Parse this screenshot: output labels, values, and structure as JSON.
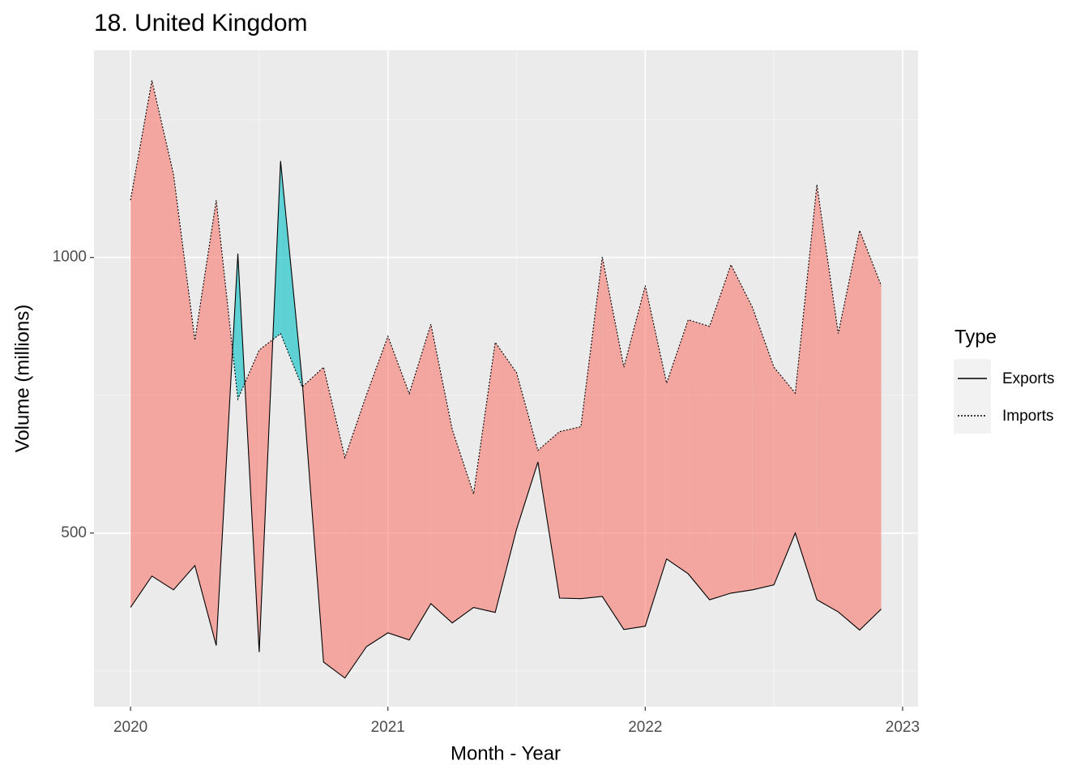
{
  "chart_data": {
    "type": "ribbon_line",
    "title": "18. United Kingdom",
    "x_label": "Month - Year",
    "y_label": "Volume (millions)",
    "legend_title": "Type",
    "legend_position": "right",
    "x": [
      2020.0,
      2020.083,
      2020.167,
      2020.25,
      2020.333,
      2020.417,
      2020.5,
      2020.583,
      2020.667,
      2020.75,
      2020.833,
      2020.917,
      2021.0,
      2021.083,
      2021.167,
      2021.25,
      2021.333,
      2021.417,
      2021.5,
      2021.583,
      2021.667,
      2021.75,
      2021.833,
      2021.917,
      2022.0,
      2022.083,
      2022.167,
      2022.25,
      2022.333,
      2022.417,
      2022.5,
      2022.583,
      2022.667,
      2022.75,
      2022.833,
      2022.917
    ],
    "series": [
      {
        "name": "Exports",
        "color": "#000000",
        "dash": "solid",
        "values": [
          365,
          422,
          397,
          441,
          296,
          1007,
          284,
          1175,
          776,
          266,
          237,
          294,
          319,
          306,
          372,
          337,
          365,
          356,
          507,
          629,
          382,
          381,
          385,
          325,
          331,
          453,
          426,
          379,
          391,
          397,
          406,
          500,
          379,
          357,
          324,
          362
        ]
      },
      {
        "name": "Imports",
        "color": "#000000",
        "dash": "dotted",
        "values": [
          1104,
          1321,
          1151,
          850,
          1104,
          743,
          832,
          862,
          765,
          801,
          637,
          751,
          857,
          753,
          879,
          688,
          571,
          846,
          791,
          650,
          684,
          693,
          1001,
          801,
          949,
          772,
          887,
          875,
          987,
          909,
          801,
          754,
          1132,
          862,
          1049,
          949
        ]
      }
    ],
    "ribbon_colors": [
      "#F8766D",
      "#00BFC4"
    ],
    "xlim": [
      2019.858,
      2023.06
    ],
    "xticks": [
      2020,
      2021,
      2022,
      2023
    ],
    "ylim": [
      185,
      1376
    ],
    "yticks": [
      500,
      1000
    ],
    "grid": true
  }
}
